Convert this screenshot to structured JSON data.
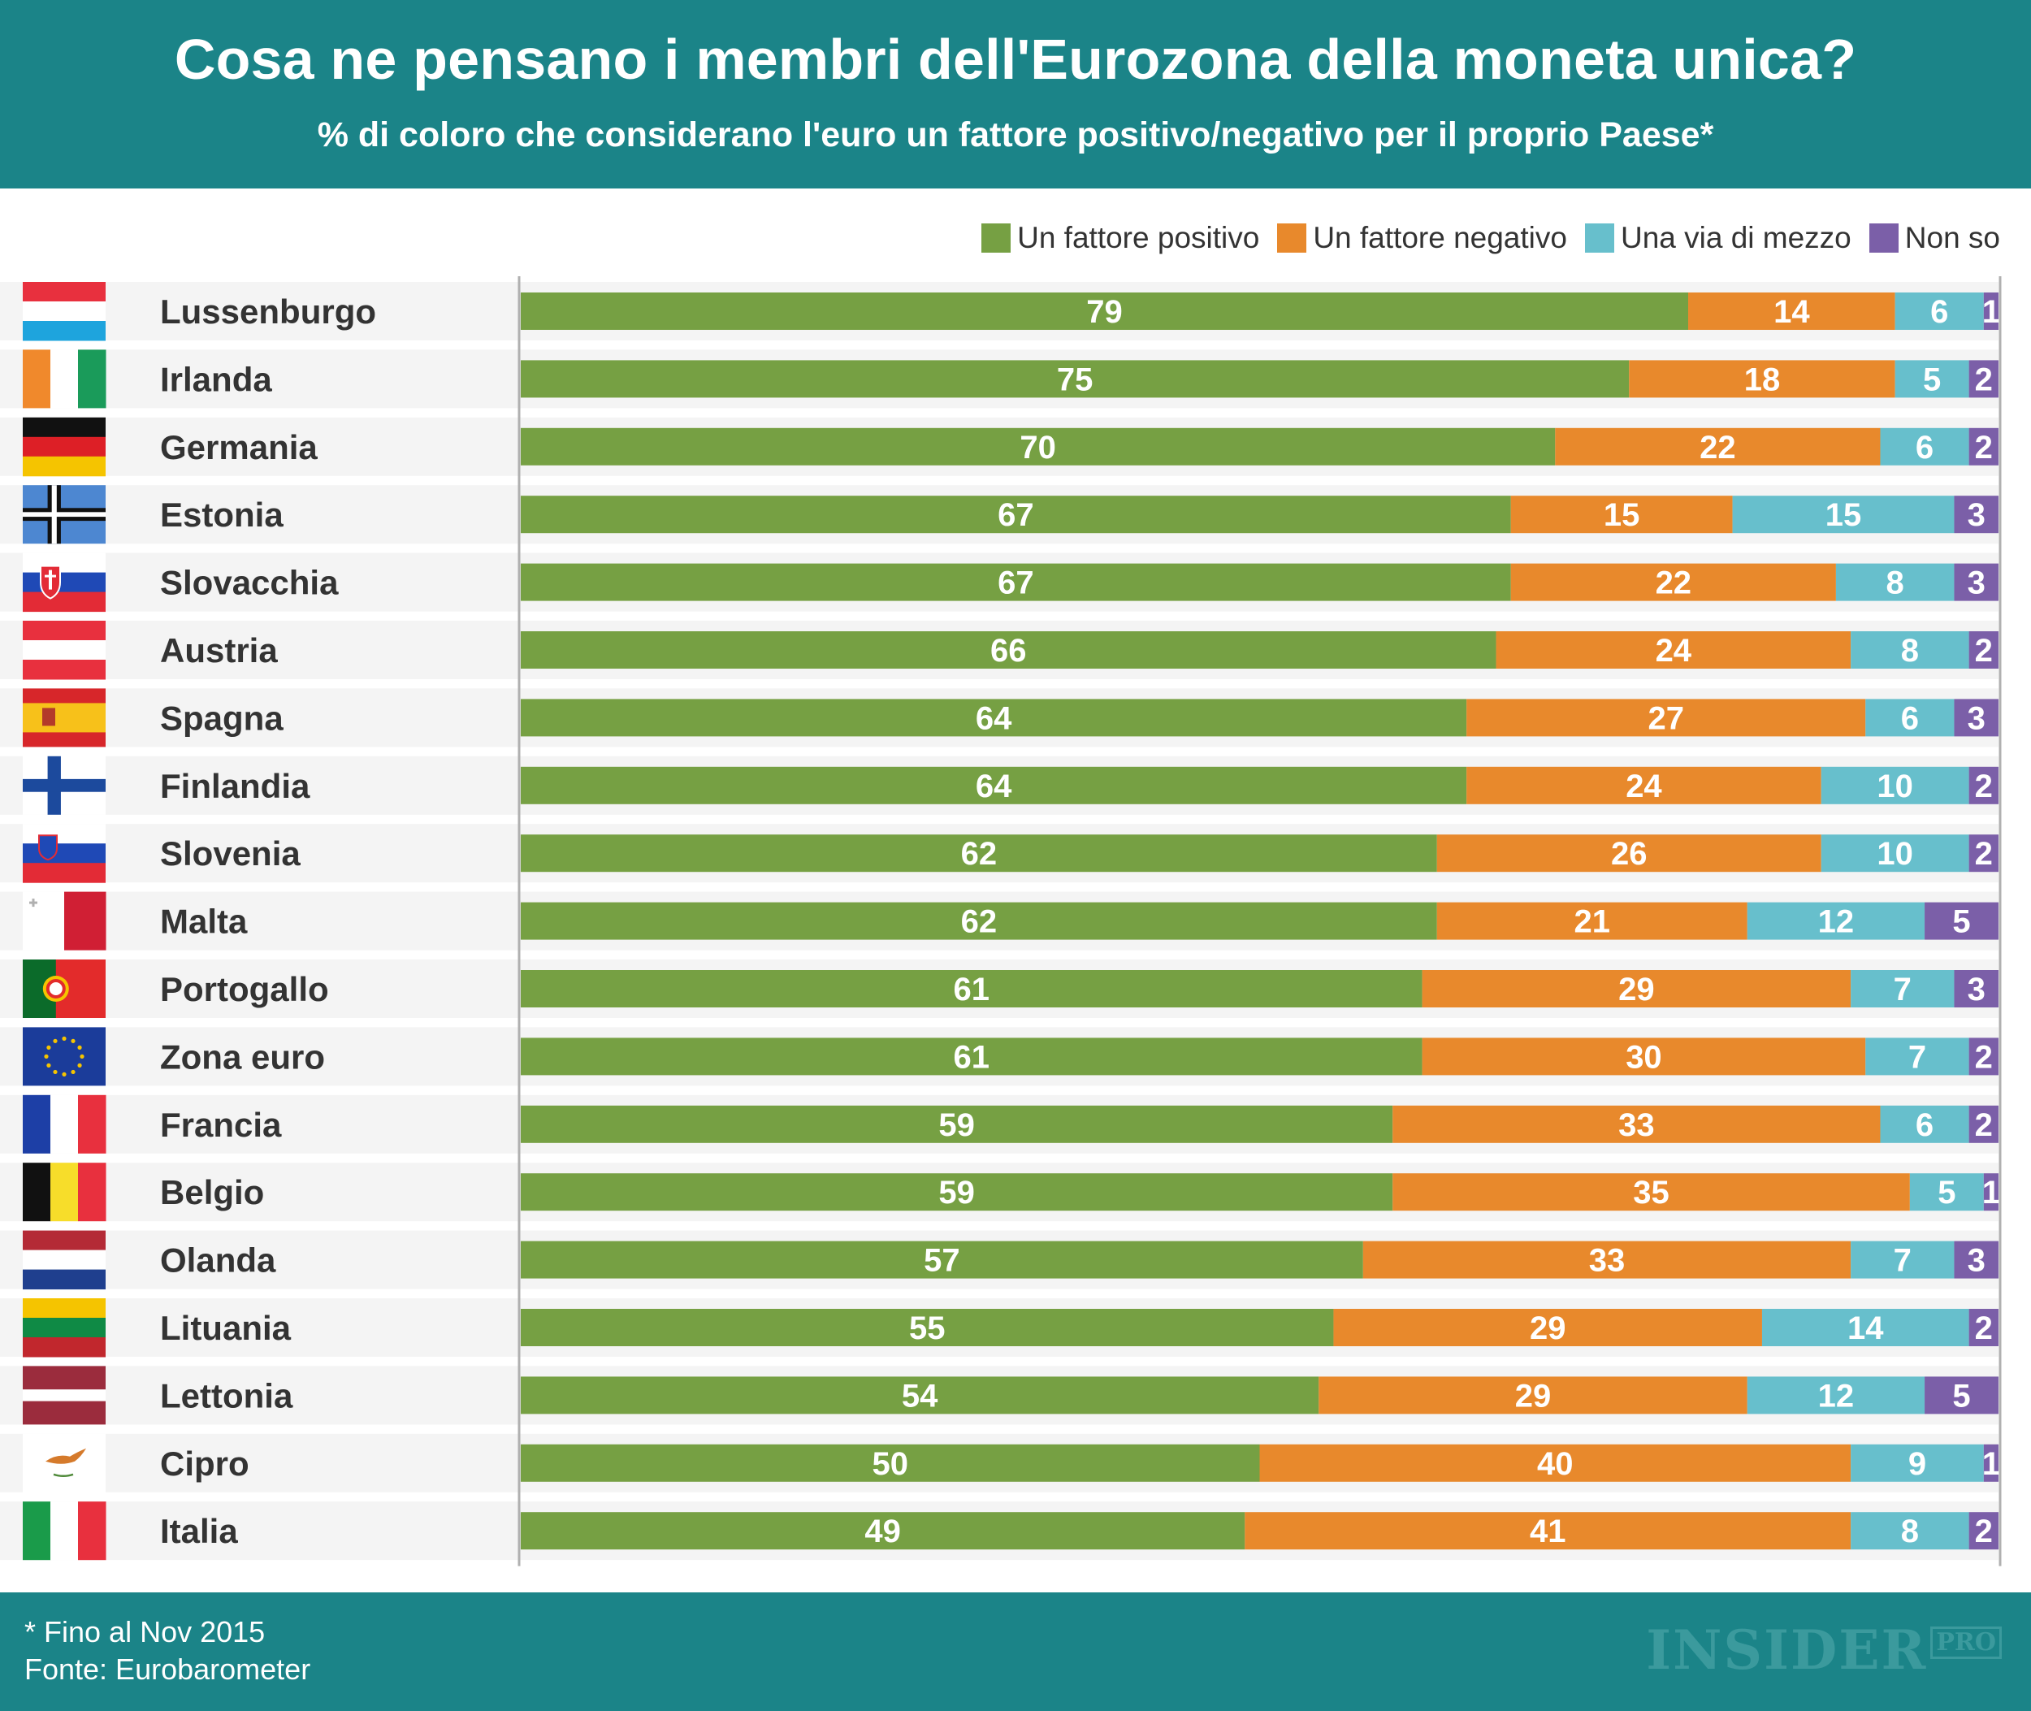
{
  "header": {
    "title": "Cosa ne pensano i membri dell'Eurozona della moneta unica?",
    "subtitle": "% di coloro che considerano l'euro un fattore positivo/negativo per il proprio Paese*"
  },
  "footer": {
    "note": "* Fino al Nov 2015",
    "source": "Fonte: Eurobarometer",
    "brand": "INSIDER",
    "brand_sup": "PRO"
  },
  "colors": {
    "header_bg": "#1b8488",
    "row_stripe": "#f4f4f4",
    "axis": "#b0b0b0"
  },
  "chart_data": {
    "type": "bar",
    "orientation": "horizontal",
    "stacked": true,
    "categories": [
      "Lussenburgo",
      "Irlanda",
      "Germania",
      "Estonia",
      "Slovacchia",
      "Austria",
      "Spagna",
      "Finlandia",
      "Slovenia",
      "Malta",
      "Portogallo",
      "Zona euro",
      "Francia",
      "Belgio",
      "Olanda",
      "Lituania",
      "Lettonia",
      "Cipro",
      "Italia"
    ],
    "flags": [
      "luxembourg-flag",
      "ireland-flag",
      "germany-flag",
      "estonia-flag",
      "slovakia-flag",
      "austria-flag",
      "spain-flag",
      "finland-flag",
      "slovenia-flag",
      "malta-flag",
      "portugal-flag",
      "eu-flag",
      "france-flag",
      "belgium-flag",
      "netherlands-flag",
      "lithuania-flag",
      "latvia-flag",
      "cyprus-flag",
      "italy-flag"
    ],
    "series": [
      {
        "name": "Un fattore positivo",
        "color": "#76a043",
        "values": [
          79,
          75,
          70,
          67,
          67,
          66,
          64,
          64,
          62,
          62,
          61,
          61,
          59,
          59,
          57,
          55,
          54,
          50,
          49
        ]
      },
      {
        "name": "Un fattore negativo",
        "color": "#e8892c",
        "values": [
          14,
          18,
          22,
          15,
          22,
          24,
          27,
          24,
          26,
          21,
          29,
          30,
          33,
          35,
          33,
          29,
          29,
          40,
          41
        ]
      },
      {
        "name": "Una via di mezzo",
        "color": "#67bfcc",
        "values": [
          6,
          5,
          6,
          15,
          8,
          8,
          6,
          10,
          10,
          12,
          7,
          7,
          6,
          5,
          7,
          14,
          12,
          9,
          8
        ]
      },
      {
        "name": "Non so",
        "color": "#7b5fa8",
        "values": [
          1,
          2,
          2,
          3,
          3,
          2,
          3,
          2,
          2,
          5,
          3,
          2,
          2,
          1,
          3,
          2,
          5,
          1,
          2
        ]
      }
    ],
    "xlim": [
      0,
      100
    ],
    "legend_position": "top-right",
    "grid": false
  }
}
